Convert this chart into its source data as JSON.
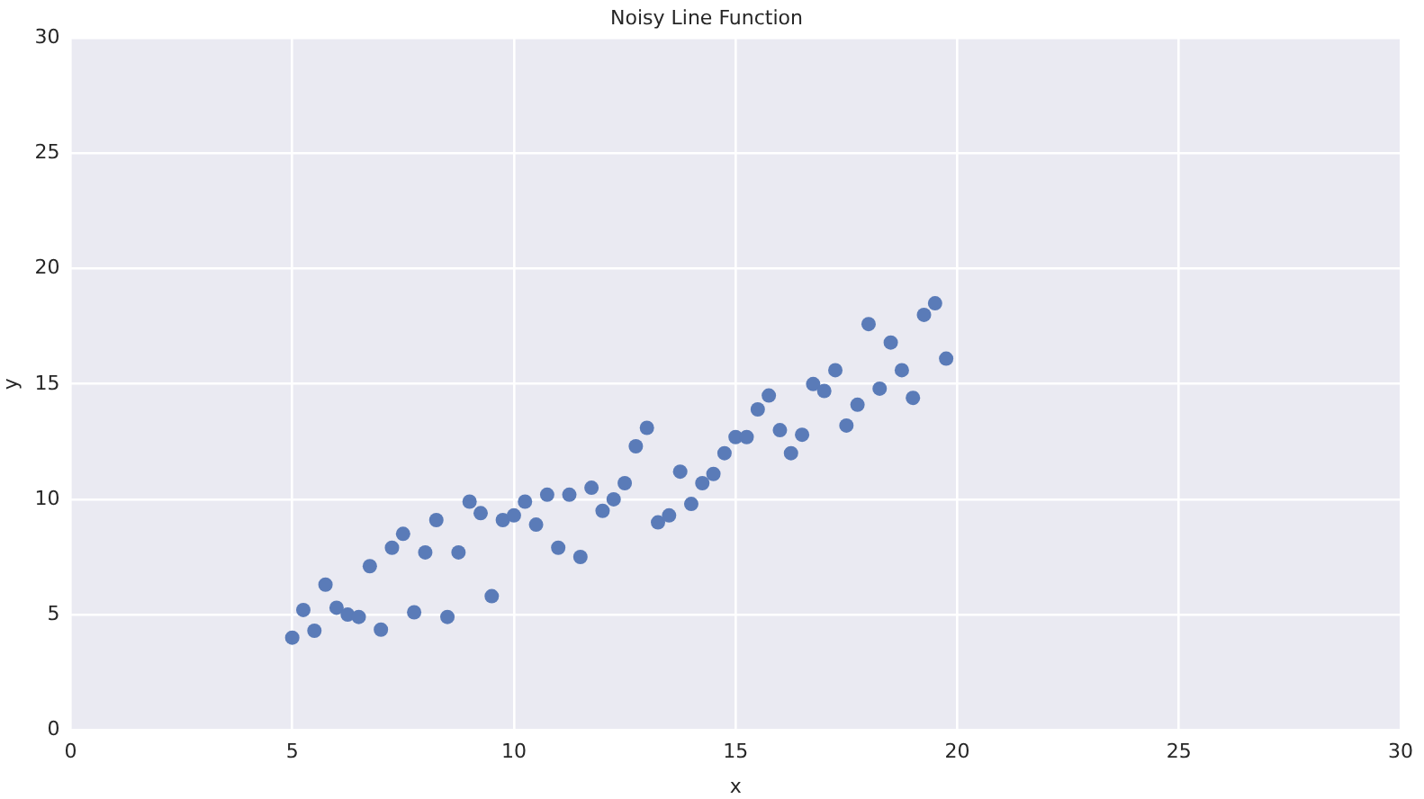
{
  "chart_data": {
    "type": "scatter",
    "title": "Noisy Line Function",
    "xlabel": "x",
    "ylabel": "y",
    "x": [
      5,
      5.25,
      5.5,
      5.75,
      6,
      6.25,
      6.5,
      6.75,
      7,
      7.25,
      7.5,
      7.75,
      8,
      8.25,
      8.5,
      8.75,
      9,
      9.25,
      9.5,
      9.75,
      10,
      10.25,
      10.5,
      10.75,
      11,
      11.25,
      11.5,
      11.75,
      12,
      12.25,
      12.5,
      12.75,
      13,
      13.25,
      13.5,
      13.75,
      14,
      14.25,
      14.5,
      14.75,
      15,
      15.25,
      15.5,
      15.75,
      16,
      16.25,
      16.5,
      16.75,
      17,
      17.25,
      17.5,
      17.75,
      18,
      18.25,
      18.5,
      18.75,
      19,
      19.25,
      19.5,
      19.75
    ],
    "series": [
      {
        "color": "#5a7bb8",
        "values": [
          4.0,
          5.2,
          4.3,
          6.3,
          5.3,
          5.0,
          4.9,
          7.1,
          4.35,
          7.9,
          8.5,
          5.1,
          7.7,
          9.1,
          4.9,
          7.7,
          9.9,
          9.4,
          5.8,
          9.1,
          9.3,
          9.9,
          8.9,
          10.2,
          7.9,
          10.2,
          7.5,
          10.5,
          9.5,
          10.0,
          10.7,
          12.3,
          13.1,
          9.0,
          9.3,
          11.2,
          9.8,
          10.7,
          11.1,
          12.0,
          12.7,
          12.7,
          13.9,
          14.5,
          13.0,
          12.0,
          12.8,
          15.0,
          14.7,
          15.6,
          13.2,
          14.1,
          17.6,
          14.8,
          16.8,
          15.6,
          14.4,
          18.0,
          18.5,
          16.1
        ]
      }
    ],
    "xlim": [
      0,
      30
    ],
    "ylim": [
      0,
      30
    ],
    "xticks": [
      0,
      5,
      10,
      15,
      20,
      25,
      30
    ],
    "yticks": [
      0,
      5,
      10,
      15,
      20,
      25,
      30
    ],
    "grid": true,
    "legend": false,
    "marker": "circle"
  }
}
